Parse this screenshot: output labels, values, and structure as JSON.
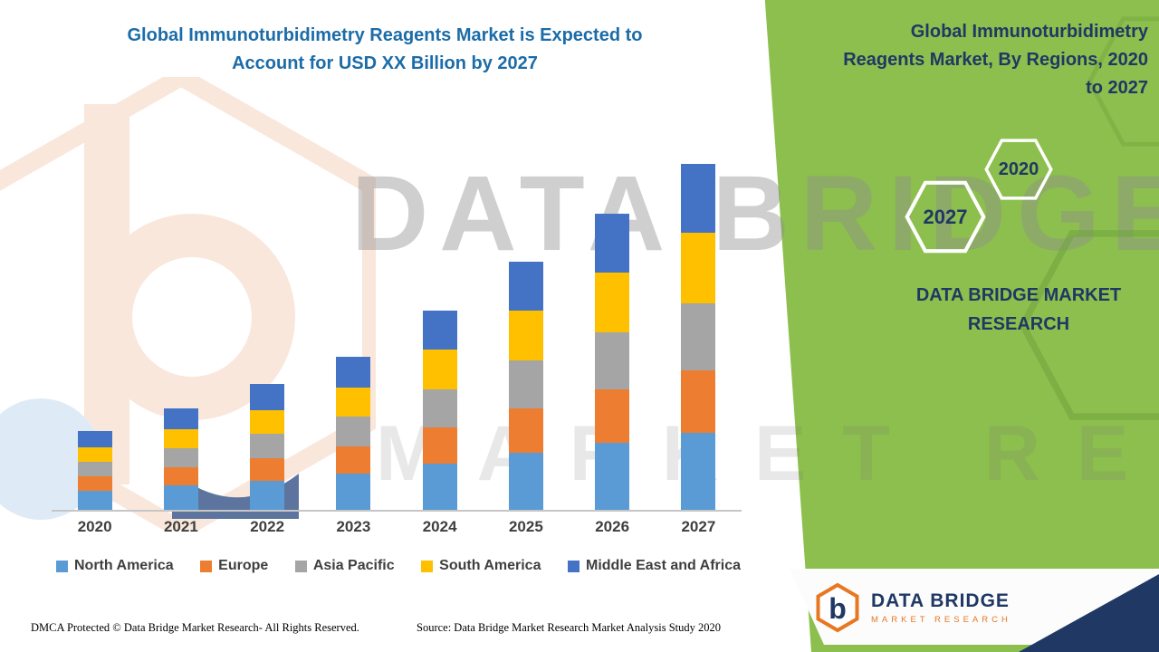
{
  "page": {
    "left_title": "Global Immunoturbidimetry Reagents Market is Expected to\nAccount for USD XX Billion by 2027",
    "right_title": "Global Immunoturbidimetry\nReagents Market, By Regions, 2020\nto 2027",
    "brand_text": "DATA BRIDGE MARKET\nRESEARCH",
    "hex_year_back": "2020",
    "hex_year_front": "2027",
    "watermark_line1": "DATA BRIDGE",
    "watermark_line2": "MARKET RESEARCH",
    "footer_left": "DMCA Protected © Data Bridge Market Research- All Rights Reserved.",
    "footer_right": "Source: Data Bridge Market Research Market Analysis Study 2020",
    "logo": {
      "monogram": "b",
      "name": "DATA BRIDGE",
      "tagline": "MARKET RESEARCH"
    },
    "colors": {
      "panel_green": "#8cbf4d",
      "navy": "#1f3864",
      "title_blue": "#1b6ca8",
      "orange": "#e87722"
    }
  },
  "chart_data": {
    "type": "bar",
    "stacked": true,
    "title": "Global Immunoturbidimetry Reagents Market, By Regions, 2020 to 2027",
    "categories": [
      "2020",
      "2021",
      "2022",
      "2023",
      "2024",
      "2025",
      "2026",
      "2027"
    ],
    "series": [
      {
        "name": "North America",
        "color": "#5B9BD5",
        "values": [
          5.5,
          7.0,
          8.5,
          10.5,
          13.5,
          16.5,
          19.5,
          22.5
        ]
      },
      {
        "name": "Europe",
        "color": "#ED7D31",
        "values": [
          4.2,
          5.5,
          6.5,
          8.0,
          10.5,
          13.0,
          15.5,
          18.0
        ]
      },
      {
        "name": "Asia Pacific",
        "color": "#A5A5A5",
        "values": [
          4.2,
          5.5,
          7.0,
          8.5,
          11.0,
          14.0,
          16.5,
          19.5
        ]
      },
      {
        "name": "South America",
        "color": "#FFC000",
        "values": [
          4.2,
          5.5,
          7.0,
          8.5,
          11.5,
          14.5,
          17.5,
          20.5
        ]
      },
      {
        "name": "Middle East and Africa",
        "color": "#4472C4",
        "values": [
          4.7,
          6.0,
          7.5,
          9.0,
          11.5,
          14.0,
          17.0,
          20.0
        ]
      }
    ],
    "xlabel": "",
    "ylabel": "",
    "grid": false,
    "y_axis_visible": false,
    "values_are_estimates": true,
    "legend_position": "bottom"
  }
}
